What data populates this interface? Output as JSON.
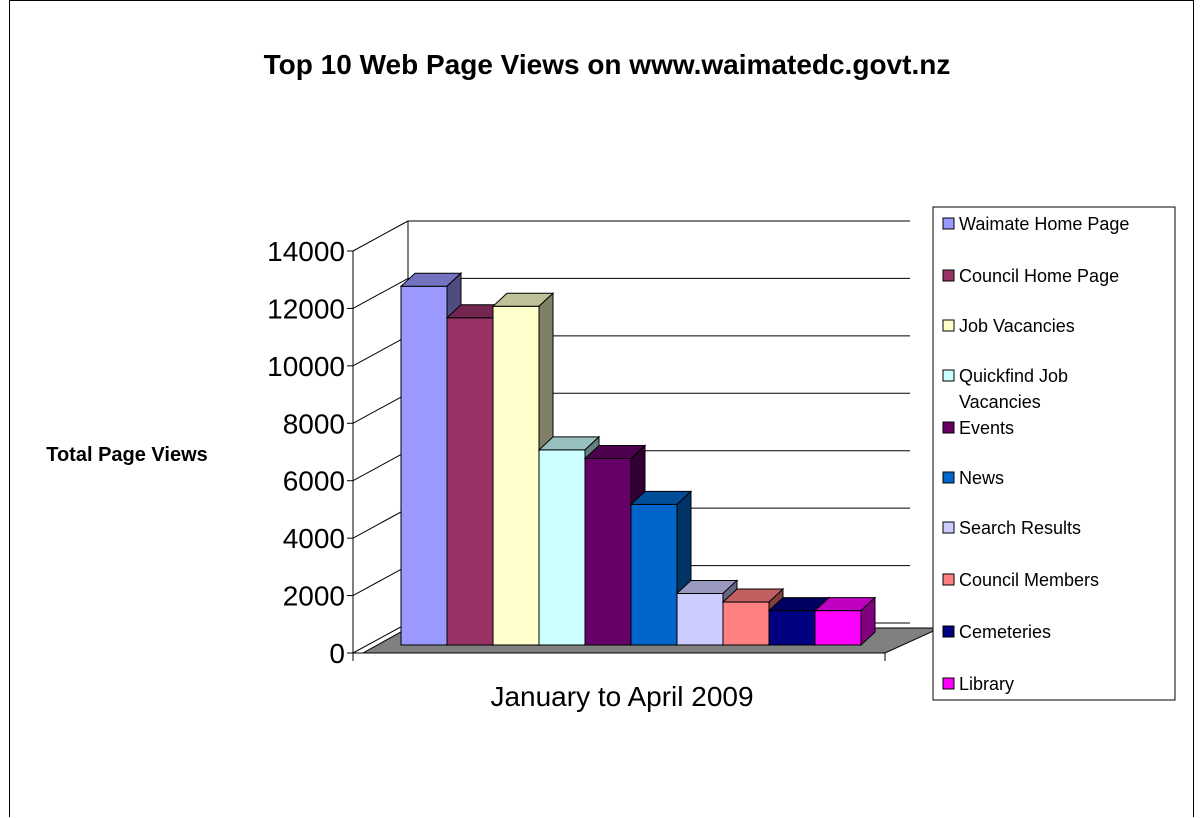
{
  "chart_data": {
    "type": "bar",
    "title": "Top 10 Web Page Views on www.waimatedc.govt.nz",
    "ylabel": "Total Page Views",
    "xlabel": "January to April 2009",
    "categories": [
      "January to April 2009"
    ],
    "ylim": [
      0,
      14000
    ],
    "yticks": [
      0,
      2000,
      4000,
      6000,
      8000,
      10000,
      12000,
      14000
    ],
    "grid": true,
    "three_d": true,
    "legend_position": "right",
    "series": [
      {
        "name": "Waimate Home Page",
        "values": [
          12600
        ],
        "color": "#9999ff",
        "side": "#4d4d80",
        "top": "#7373c0"
      },
      {
        "name": "Council Home Page",
        "values": [
          11500
        ],
        "color": "#993366",
        "side": "#4d1a33",
        "top": "#732650"
      },
      {
        "name": "Job Vacancies",
        "values": [
          11900
        ],
        "color": "#ffffcc",
        "side": "#808066",
        "top": "#c0c099"
      },
      {
        "name": "Quickfind Job Vacancies",
        "legend_lines": [
          "Quickfind Job",
          "Vacancies"
        ],
        "values": [
          6900
        ],
        "color": "#ccffff",
        "side": "#668080",
        "top": "#99c0c0"
      },
      {
        "name": "Events",
        "values": [
          6600
        ],
        "color": "#660066",
        "side": "#330033",
        "top": "#4d004d"
      },
      {
        "name": "News",
        "values": [
          5000
        ],
        "color": "#0066cc",
        "side": "#003366",
        "top": "#004d99"
      },
      {
        "name": "Search Results",
        "values": [
          1900
        ],
        "color": "#ccccff",
        "side": "#666680",
        "top": "#9999c0"
      },
      {
        "name": "Council Members",
        "values": [
          1600
        ],
        "color": "#ff8080",
        "side": "#804040",
        "top": "#c06060"
      },
      {
        "name": "Cemeteries",
        "values": [
          1300
        ],
        "color": "#000080",
        "side": "#000040",
        "top": "#000060"
      },
      {
        "name": "Library",
        "values": [
          1300
        ],
        "color": "#ff00ff",
        "side": "#800080",
        "top": "#c000c0"
      }
    ]
  }
}
